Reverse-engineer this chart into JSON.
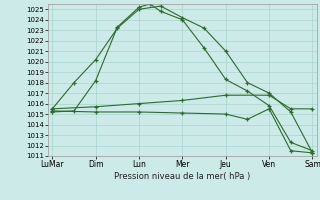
{
  "title": "Pression niveau de la mer( hPa )",
  "background_color": "#cceae7",
  "grid_color": "#aad4d0",
  "line_color": "#2d6a2d",
  "ylim": [
    1011,
    1025.5
  ],
  "yticks": [
    1011,
    1012,
    1013,
    1014,
    1015,
    1016,
    1017,
    1018,
    1019,
    1020,
    1021,
    1022,
    1023,
    1024,
    1025
  ],
  "x_labels": [
    "LuMar",
    "Dim",
    "Lun",
    "Mer",
    "Jeu",
    "Ven",
    "Sam"
  ],
  "x_positions": [
    0,
    2,
    4,
    6,
    8,
    10,
    12
  ],
  "series": [
    {
      "x": [
        0,
        1,
        2,
        3,
        4,
        5,
        6,
        7,
        8,
        9,
        10,
        11,
        12
      ],
      "y": [
        1015.5,
        1018.0,
        1020.2,
        1023.2,
        1025.0,
        1025.3,
        1024.2,
        1023.2,
        1021.0,
        1018.0,
        1017.0,
        1015.2,
        1011.3
      ]
    },
    {
      "x": [
        0,
        1,
        2,
        3,
        4,
        4.5,
        5,
        6,
        7,
        8,
        9,
        10,
        11,
        12
      ],
      "y": [
        1015.2,
        1015.3,
        1018.2,
        1023.3,
        1025.2,
        1025.5,
        1024.8,
        1024.0,
        1021.3,
        1018.3,
        1017.2,
        1015.8,
        1012.3,
        1011.5
      ]
    },
    {
      "x": [
        0,
        2,
        4,
        6,
        8,
        10,
        11,
        12
      ],
      "y": [
        1015.5,
        1015.7,
        1016.0,
        1016.3,
        1016.8,
        1016.8,
        1015.5,
        1015.5
      ]
    },
    {
      "x": [
        0,
        2,
        4,
        6,
        8,
        9,
        10,
        11,
        12
      ],
      "y": [
        1015.3,
        1015.2,
        1015.2,
        1015.1,
        1015.0,
        1014.5,
        1015.5,
        1011.5,
        1011.3
      ]
    }
  ]
}
